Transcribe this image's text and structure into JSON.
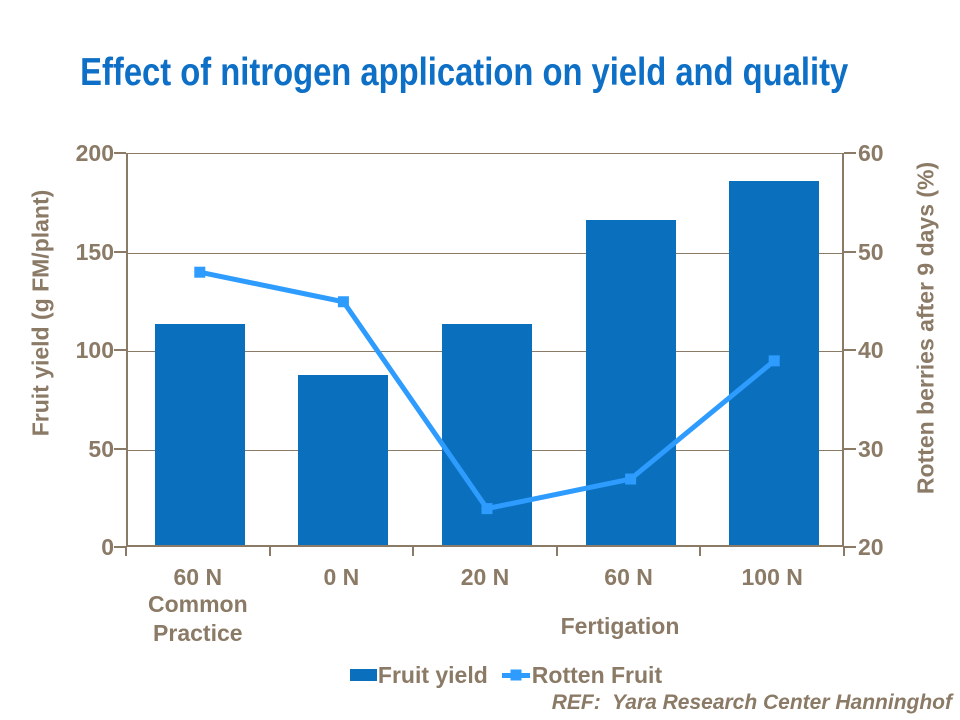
{
  "colors": {
    "title": "#0D6FC5",
    "bar": "#0A70BE",
    "line": "#2E9BFE",
    "text": "#8A7A66",
    "axis": "#8A7A66"
  },
  "footer": {
    "text": "REF:  Yara Research Center Hanninghof"
  },
  "chart_data": {
    "type": "bar+line",
    "title": "Effect of nitrogen application on yield and quality",
    "categories": [
      "60 N",
      "0 N",
      "20 N",
      "60 N",
      "100 N"
    ],
    "category_note": {
      "category_index": 0,
      "text": "Common Practice"
    },
    "group_label": "Fertigation",
    "series": [
      {
        "name": "Fruit yield",
        "type": "bar",
        "axis": "left",
        "color": "#0A70BE",
        "values": [
          113,
          87,
          113,
          166,
          186
        ]
      },
      {
        "name": "Rotten Fruit",
        "type": "line",
        "axis": "right",
        "color": "#2E9BFE",
        "marker": "square",
        "values": [
          48,
          45,
          24,
          27,
          39
        ]
      }
    ],
    "left_axis": {
      "title": "Fruit yield (g FM/plant)",
      "min": 0,
      "max": 200,
      "ticks": [
        0,
        50,
        100,
        150,
        200
      ]
    },
    "right_axis": {
      "title": "Rotten berries after 9 days (%)",
      "min": 20,
      "max": 60,
      "ticks": [
        20,
        30,
        40,
        50,
        60
      ]
    },
    "grid": true,
    "legend_position": "bottom"
  }
}
